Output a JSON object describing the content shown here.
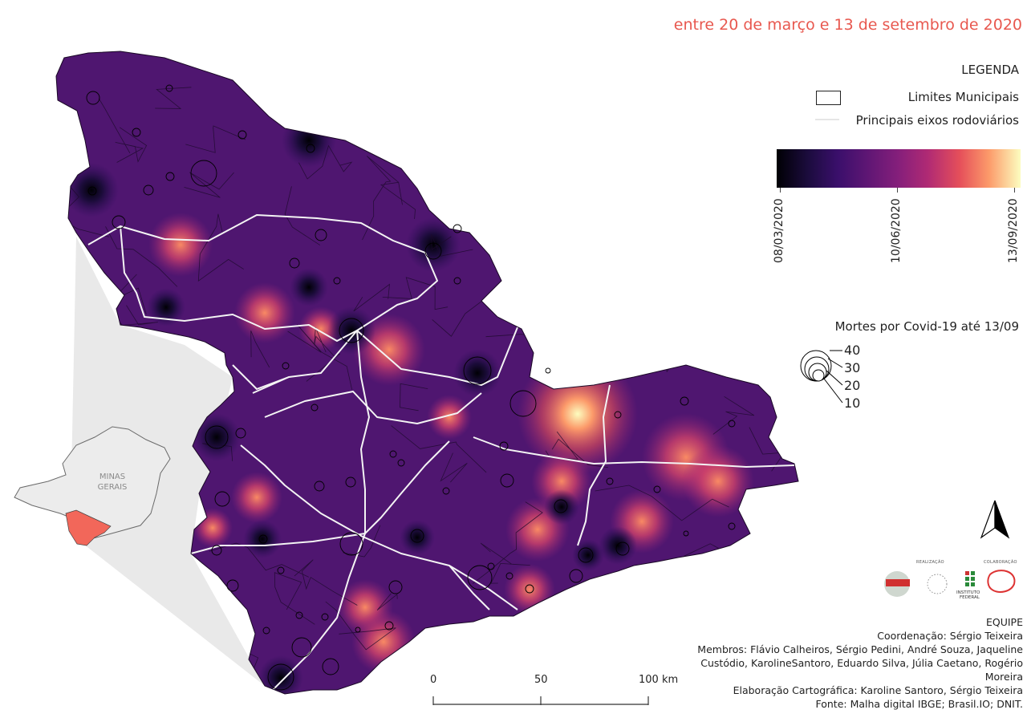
{
  "subtitle": "entre 20 de março e 13 de setembro de 2020",
  "legend": {
    "title": "LEGENDA",
    "municipal_limits": "Limites Municipais",
    "roads": "Principais eixos rodoviários",
    "ramp_labels": [
      "08/03/2020",
      "10/06/2020",
      "13/09/2020"
    ],
    "ramp_colors": [
      "#000004",
      "#3a0f6b",
      "#851f7b",
      "#e54f5a",
      "#fcfdbf"
    ]
  },
  "deaths_legend": {
    "title": "Mortes por Covid-19 até 13/09",
    "sizes": [
      "40",
      "30",
      "20",
      "10"
    ]
  },
  "inset": {
    "label_line1": "MINAS",
    "label_line2": "GERAIS"
  },
  "scale_bar": {
    "labels": [
      "0",
      "50",
      "100 km"
    ]
  },
  "logos": {
    "realizacao": "REALIZAÇÃO",
    "colaboracao": "COLABORAÇÃO",
    "if_line1": "INSTITUTO",
    "if_line2": "FEDERAL"
  },
  "credits": {
    "team": "EQUIPE",
    "coordination": "Coordenação: Sérgio Teixeira",
    "members": "Membros: Flávio Calheiros, Sérgio Pedini, André Souza, Jaqueline Custódio, KarolineSantoro, Eduardo Silva, Júlia Caetano, Rogério Moreira",
    "cartography": "Elaboração Cartográfica: Karoline Santoro, Sérgio Teixeira",
    "source": "Fonte: Malha digital IBGE; Brasil.IO; DNIT."
  }
}
